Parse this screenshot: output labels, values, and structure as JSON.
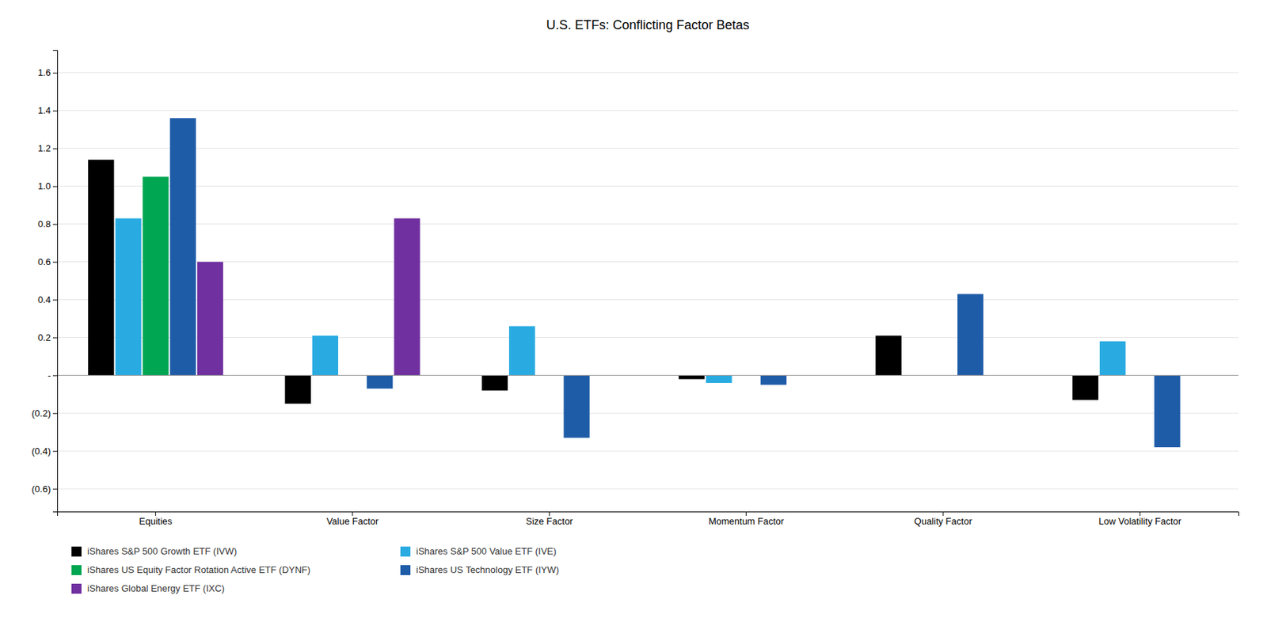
{
  "chart_data": {
    "type": "bar",
    "title": "U.S. ETFs: Conflicting Factor Betas",
    "categories": [
      "Equities",
      "Value Factor",
      "Size Factor",
      "Momentum Factor",
      "Quality Factor",
      "Low Volatility Factor"
    ],
    "series": [
      {
        "name": "iShares S&P 500 Growth ETF (IVW)",
        "color": "#000000",
        "values": [
          1.14,
          -0.15,
          -0.08,
          -0.02,
          0.21,
          -0.13
        ]
      },
      {
        "name": "iShares S&P 500 Value ETF (IVE)",
        "color": "#29ABE2",
        "values": [
          0.83,
          0.21,
          0.26,
          -0.04,
          null,
          0.18
        ]
      },
      {
        "name": "iShares US Equity Factor Rotation Active ETF (DYNF)",
        "color": "#00A651",
        "values": [
          1.05,
          null,
          null,
          null,
          null,
          null
        ]
      },
      {
        "name": "iShares US Technology ETF (IYW)",
        "color": "#1F5CA8",
        "values": [
          1.36,
          -0.07,
          -0.33,
          -0.05,
          0.43,
          -0.38
        ]
      },
      {
        "name": "iShares Global Energy ETF (IXC)",
        "color": "#7030A0",
        "values": [
          0.6,
          0.83,
          null,
          null,
          null,
          null
        ]
      }
    ],
    "ylim": [
      -0.72,
      1.72
    ],
    "yticks": [
      {
        "value": -0.6,
        "label": "(0.6)"
      },
      {
        "value": -0.4,
        "label": "(0.4)"
      },
      {
        "value": -0.2,
        "label": "(0.2)"
      },
      {
        "value": 0.0,
        "label": "-"
      },
      0.2,
      0.4,
      0.6,
      0.8,
      {
        "value": 1.0,
        "label": "1.0"
      },
      1.2,
      1.4,
      1.6
    ],
    "grid": true,
    "legend": "bottom"
  }
}
